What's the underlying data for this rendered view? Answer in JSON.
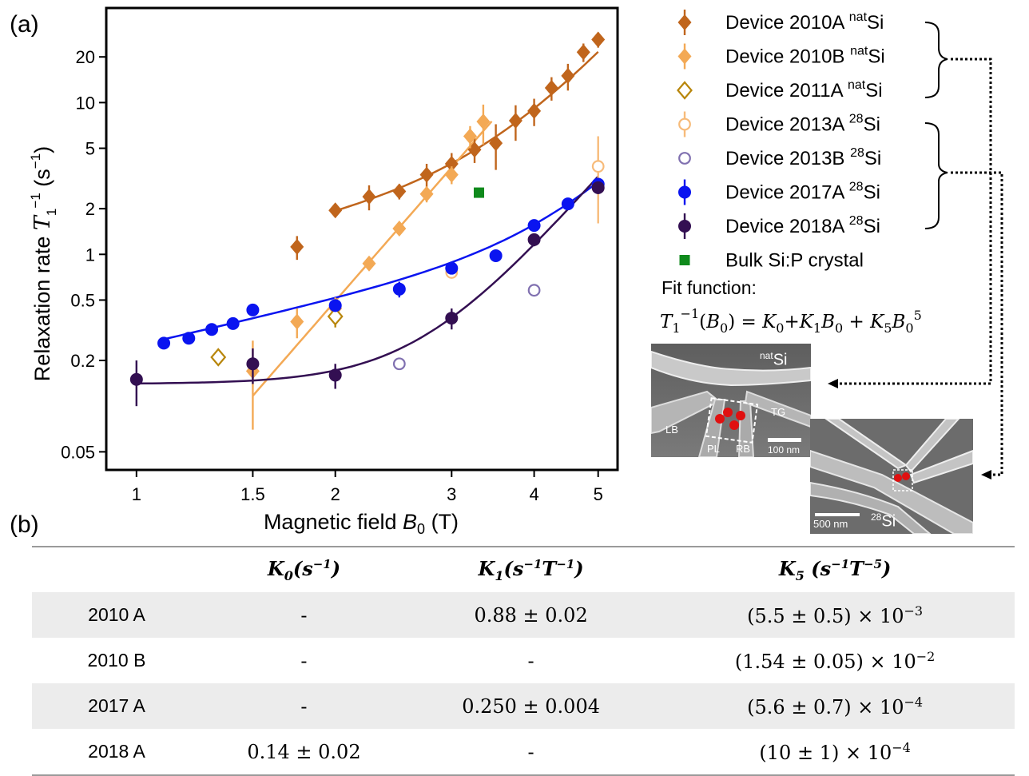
{
  "panel_a_label": "(a)",
  "panel_b_label": "(b)",
  "chart_data": {
    "type": "scatter",
    "xlabel": "Magnetic field B0 (T)",
    "ylabel": "Relaxation rate T1^-1 (s^-1)",
    "xscale": "log",
    "yscale": "log",
    "xlim": [
      0.9,
      5.35
    ],
    "ylim": [
      0.038,
      42
    ],
    "xticks": [
      1,
      1.5,
      2,
      3,
      4,
      5
    ],
    "xtick_labels": [
      "1",
      "1.5",
      "2",
      "3",
      "4",
      "5"
    ],
    "yticks": [
      0.05,
      0.2,
      0.5,
      1,
      2,
      5,
      10,
      20
    ],
    "ytick_labels": [
      "0.05",
      "0.2",
      "0.5",
      "1",
      "2",
      "5",
      "10",
      "20"
    ],
    "legend_position": "outside-right",
    "series": [
      {
        "name": "Device 2010A natSi",
        "marker": "diamond-filled",
        "color": "#c0651c",
        "x": [
          1.75,
          2.0,
          2.25,
          2.5,
          2.75,
          3.0,
          3.25,
          3.5,
          3.75,
          4.0,
          4.25,
          4.5,
          4.75,
          5.0
        ],
        "y": [
          1.12,
          1.95,
          2.4,
          2.6,
          3.35,
          3.95,
          4.9,
          5.4,
          7.6,
          8.8,
          12.5,
          15.0,
          21.5,
          26.0
        ],
        "err": [
          0.2,
          0.15,
          0.45,
          0.3,
          0.6,
          0.7,
          0.9,
          1.8,
          2.0,
          1.8,
          2.2,
          3.0,
          3.0,
          3.0
        ]
      },
      {
        "name": "Device 2010B natSi",
        "marker": "diamond-filled",
        "color": "#f3a955",
        "x": [
          1.5,
          1.75,
          2.0,
          2.25,
          2.5,
          2.75,
          3.0,
          3.2,
          3.35
        ],
        "y": [
          0.17,
          0.36,
          0.44,
          0.87,
          1.48,
          2.5,
          3.35,
          6.0,
          7.5
        ],
        "err": [
          0.1,
          0.08,
          0.08,
          0.08,
          0.12,
          0.3,
          0.45,
          1.0,
          2.2
        ]
      },
      {
        "name": "Device 2011A natSi",
        "marker": "diamond-open",
        "color": "#b8860b",
        "x": [
          1.33,
          2.0
        ],
        "y": [
          0.21,
          0.39
        ],
        "err": [
          0,
          0.06
        ]
      },
      {
        "name": "Device 2013A 28Si",
        "marker": "circle-open",
        "color": "#f7bb7a",
        "x": [
          3.0,
          5.0
        ],
        "y": [
          0.76,
          3.8
        ],
        "err": [
          0.06,
          2.2
        ]
      },
      {
        "name": "Device 2013B 28Si",
        "marker": "circle-open",
        "color": "#8070b0",
        "x": [
          2.5,
          4.0
        ],
        "y": [
          0.19,
          0.58
        ],
        "err": [
          0,
          0
        ]
      },
      {
        "name": "Device 2017A 28Si",
        "marker": "circle-filled",
        "color": "#0a14f0",
        "x": [
          1.1,
          1.2,
          1.3,
          1.4,
          1.5,
          2.0,
          2.5,
          3.0,
          3.5,
          4.0,
          4.5,
          5.0
        ],
        "y": [
          0.26,
          0.28,
          0.32,
          0.35,
          0.43,
          0.46,
          0.59,
          0.81,
          0.98,
          1.55,
          2.15,
          2.9
        ],
        "err": [
          0,
          0,
          0,
          0,
          0.03,
          0.03,
          0.07,
          0.06,
          0.05,
          0.1,
          0.15,
          0.2
        ]
      },
      {
        "name": "Device 2018A 28Si",
        "marker": "circle-filled",
        "color": "#330f52",
        "x": [
          1.0,
          1.5,
          2.0,
          3.0,
          4.0,
          5.0
        ],
        "y": [
          0.15,
          0.19,
          0.16,
          0.38,
          1.25,
          2.75
        ],
        "err": [
          0.05,
          0.05,
          0.03,
          0.06,
          0.12,
          0.25
        ]
      },
      {
        "name": "Bulk Si:P crystal",
        "marker": "square-filled",
        "color": "#0f8a1c",
        "x": [
          3.3
        ],
        "y": [
          2.55
        ],
        "err": [
          0
        ]
      }
    ],
    "fits": [
      {
        "series": "Device 2010A natSi",
        "color": "#c0651c",
        "K0": 0,
        "K1": 0.88,
        "K5": 0.0055,
        "xrange": [
          2.0,
          5.0
        ]
      },
      {
        "series": "Device 2010B natSi",
        "color": "#f3a955",
        "K0": 0,
        "K1": 0,
        "K5": 0.0154,
        "xrange": [
          1.5,
          3.45
        ]
      },
      {
        "series": "Device 2017A 28Si",
        "color": "#0a14f0",
        "K0": 0,
        "K1": 0.25,
        "K5": 0.00056,
        "xrange": [
          1.1,
          5.0
        ]
      },
      {
        "series": "Device 2018A 28Si",
        "color": "#330f52",
        "K0": 0.14,
        "K1": 0,
        "K5": 0.001,
        "xrange": [
          1.0,
          5.0
        ]
      }
    ],
    "fit_function_label": "Fit  function:",
    "fit_function": "T1^-1(B0) = K0+K1B0 + K5B0^5"
  },
  "legend": [
    {
      "text": "Device 2010A ",
      "sup": "nat",
      "suffix": "Si",
      "marker": "diamond-filled",
      "color": "#c0651c",
      "errorbar": true
    },
    {
      "text": "Device 2010B ",
      "sup": "nat",
      "suffix": "Si",
      "marker": "diamond-filled",
      "color": "#f3a955",
      "errorbar": true
    },
    {
      "text": "Device 2011A ",
      "sup": "nat",
      "suffix": "Si",
      "marker": "diamond-open",
      "color": "#b8860b",
      "errorbar": false
    },
    {
      "text": "Device 2013A ",
      "sup": "28",
      "suffix": "Si",
      "marker": "circle-open",
      "color": "#f7bb7a",
      "errorbar": true
    },
    {
      "text": "Device 2013B ",
      "sup": "28",
      "suffix": "Si",
      "marker": "circle-open",
      "color": "#8070b0",
      "errorbar": false
    },
    {
      "text": "Device 2017A ",
      "sup": "28",
      "suffix": "Si",
      "marker": "circle-filled",
      "color": "#0a14f0",
      "errorbar": true
    },
    {
      "text": "Device 2018A ",
      "sup": "28",
      "suffix": "Si",
      "marker": "circle-filled",
      "color": "#330f52",
      "errorbar": true
    },
    {
      "text": "Bulk Si:P crystal",
      "sup": "",
      "suffix": "",
      "marker": "square-filled",
      "color": "#0f8a1c",
      "errorbar": false
    }
  ],
  "sem_images": {
    "nat": {
      "material_sup": "nat",
      "material": "Si",
      "labels": [
        "LB",
        "PL",
        "RB",
        "TG"
      ],
      "scale_bar": "100 nm"
    },
    "si28": {
      "material_sup": "28",
      "material": "Si",
      "scale_bar": "500 nm"
    }
  },
  "table": {
    "headers": [
      "",
      "K0(s^-1)",
      "K1(s^-1T^-1)",
      "K5 (s^-1T^-5)"
    ],
    "rows": [
      {
        "device": "2010 A",
        "k0": "-",
        "k1": "0.88 ± 0.02",
        "k5": "(5.5 ± 0.5) × 10",
        "k5_exp": "−3"
      },
      {
        "device": "2010 B",
        "k0": "-",
        "k1": "-",
        "k5": "(1.54 ± 0.05) × 10",
        "k5_exp": "−2"
      },
      {
        "device": "2017 A",
        "k0": "-",
        "k1": "0.250 ± 0.004",
        "k5": "(5.6 ± 0.7) × 10",
        "k5_exp": "−4"
      },
      {
        "device": "2018 A",
        "k0": "0.14 ± 0.02",
        "k1": "-",
        "k5": "(10 ± 1) × 10",
        "k5_exp": "−4"
      }
    ]
  }
}
